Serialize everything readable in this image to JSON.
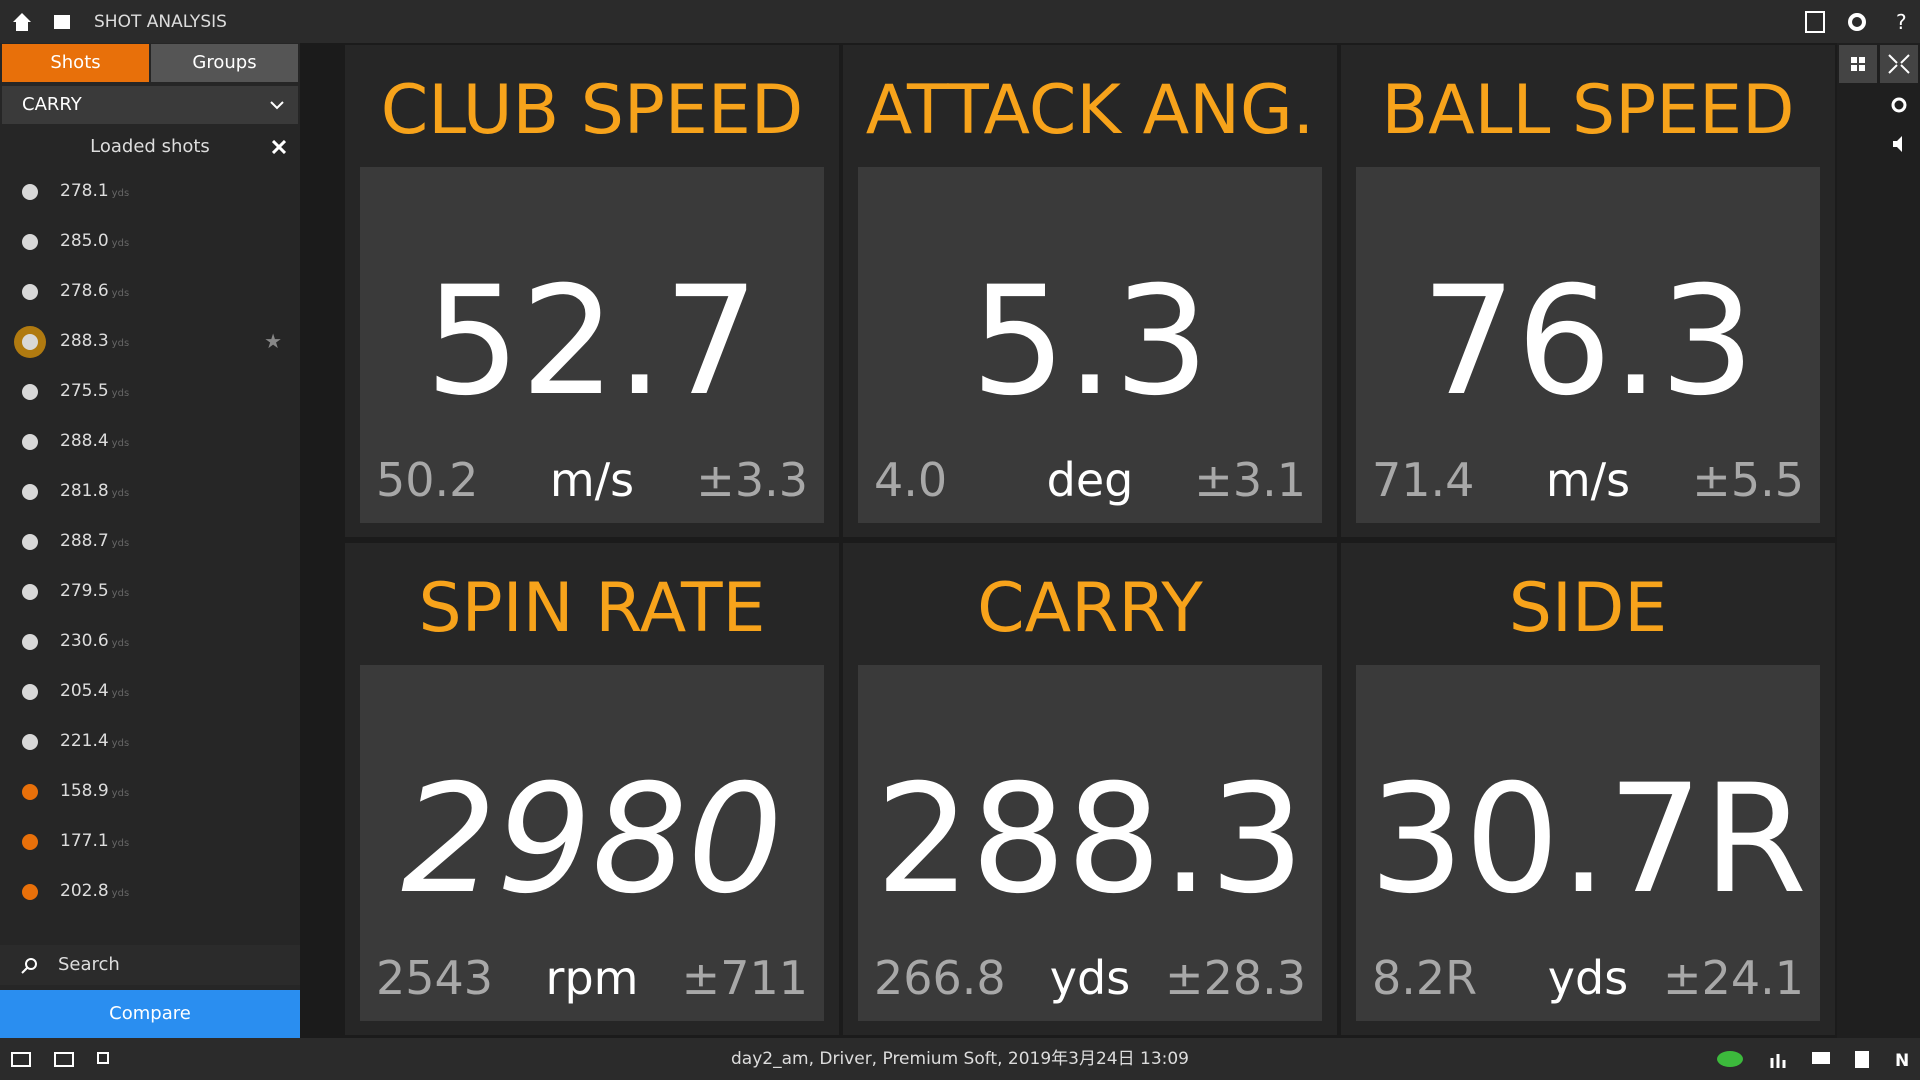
{
  "header": {
    "title": "SHOT ANALYSIS"
  },
  "tabs": [
    "Shots",
    "Groups"
  ],
  "dropdown": "CARRY",
  "loaded_shots": {
    "title": "Loaded shots",
    "unit": "yds",
    "selected": 3,
    "shots": [
      {
        "value": "278.1",
        "color": "#d8d8d8"
      },
      {
        "value": "285.0",
        "color": "#d8d8d8"
      },
      {
        "value": "278.6",
        "color": "#d8d8d8"
      },
      {
        "value": "288.3",
        "color": "#d8d8d8"
      },
      {
        "value": "275.5",
        "color": "#d8d8d8"
      },
      {
        "value": "288.4",
        "color": "#d8d8d8"
      },
      {
        "value": "281.8",
        "color": "#d8d8d8"
      },
      {
        "value": "288.7",
        "color": "#d8d8d8"
      },
      {
        "value": "279.5",
        "color": "#d8d8d8"
      },
      {
        "value": "230.6",
        "color": "#d8d8d8"
      },
      {
        "value": "205.4",
        "color": "#d8d8d8"
      },
      {
        "value": "221.4",
        "color": "#d8d8d8"
      },
      {
        "value": "158.9",
        "color": "#e8700a"
      },
      {
        "value": "177.1",
        "color": "#e8700a"
      },
      {
        "value": "202.8",
        "color": "#e8700a"
      }
    ]
  },
  "search": "Search",
  "compare": "Compare",
  "tiles": [
    {
      "title": "CLUB SPEED",
      "value": "52.7",
      "average": "50.2",
      "unit": "m/s",
      "deviation": "±3.3"
    },
    {
      "title": "ATTACK ANG.",
      "value": "5.3",
      "average": "4.0",
      "unit": "deg",
      "deviation": "±3.1"
    },
    {
      "title": "BALL SPEED",
      "value": "76.3",
      "average": "71.4",
      "unit": "m/s",
      "deviation": "±5.5"
    },
    {
      "title": "SPIN RATE",
      "value": "2980",
      "average": "2543",
      "unit": "rpm",
      "deviation": "±711"
    },
    {
      "title": "CARRY",
      "value": "288.3",
      "average": "266.8",
      "unit": "yds",
      "deviation": "±28.3"
    },
    {
      "title": "SIDE",
      "value": "30.7R",
      "average": "8.2R",
      "unit": "yds",
      "deviation": "±24.1"
    }
  ],
  "status": "day2_am, Driver, Premium Soft, 2019年3月24日 13:09"
}
